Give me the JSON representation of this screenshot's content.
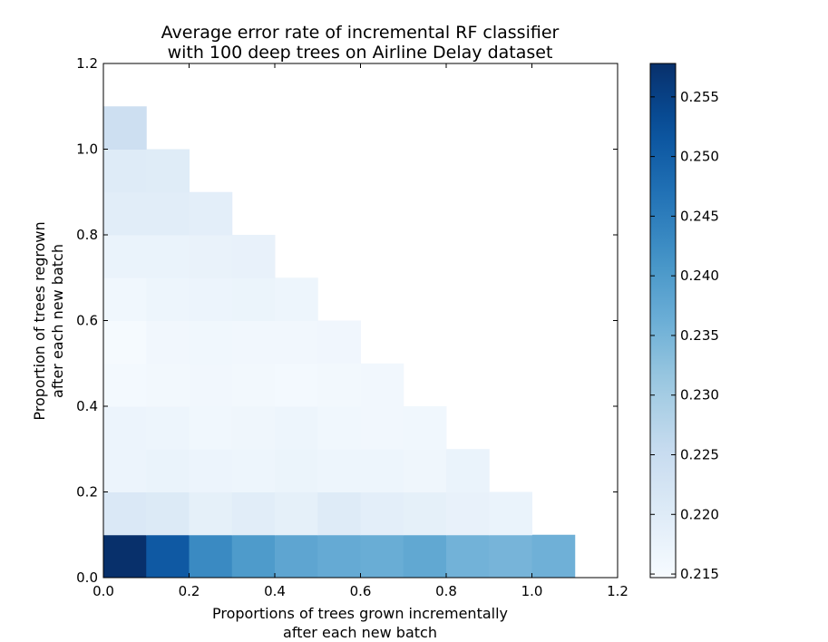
{
  "chart_data": {
    "type": "heatmap",
    "title": [
      "Average error rate of incremental RF classifier",
      "with 100 deep trees on Airline Delay dataset"
    ],
    "xlabel": [
      "Proportions of trees grown incrementally",
      "after each new batch"
    ],
    "ylabel": [
      "Proportion of trees regrown",
      "after each new batch"
    ],
    "xlim": [
      0.0,
      1.2
    ],
    "ylim": [
      0.0,
      1.2
    ],
    "xticks": [
      "0.0",
      "0.2",
      "0.4",
      "0.6",
      "0.8",
      "1.0",
      "1.2"
    ],
    "yticks": [
      "0.0",
      "0.2",
      "0.4",
      "0.6",
      "0.8",
      "1.0",
      "1.2"
    ],
    "cell_size": 0.1,
    "colormap": "Blues",
    "colorbar": {
      "min": 0.2147,
      "max": 0.2578,
      "ticks": [
        "0.215",
        "0.220",
        "0.225",
        "0.230",
        "0.235",
        "0.240",
        "0.245",
        "0.250",
        "0.255"
      ]
    },
    "rows_by_y": [
      {
        "y": 0.0,
        "values": [
          0.2578,
          0.251,
          0.243,
          0.24,
          0.238,
          0.237,
          0.2365,
          0.2375,
          0.2355,
          0.235,
          0.2358
        ]
      },
      {
        "y": 0.1,
        "values": [
          0.221,
          0.2205,
          0.2185,
          0.2195,
          0.2185,
          0.22,
          0.219,
          0.2185,
          0.218,
          0.2175
        ]
      },
      {
        "y": 0.2,
        "values": [
          0.217,
          0.2175,
          0.217,
          0.2168,
          0.2172,
          0.2168,
          0.2168,
          0.2165,
          0.2175
        ]
      },
      {
        "y": 0.3,
        "values": [
          0.217,
          0.2168,
          0.2162,
          0.2165,
          0.2168,
          0.2162,
          0.216,
          0.2162
        ]
      },
      {
        "y": 0.4,
        "values": [
          0.2155,
          0.2158,
          0.216,
          0.2158,
          0.2155,
          0.2158,
          0.216
        ]
      },
      {
        "y": 0.5,
        "values": [
          0.2152,
          0.216,
          0.2162,
          0.216,
          0.216,
          0.2163
        ]
      },
      {
        "y": 0.6,
        "values": [
          0.2162,
          0.2168,
          0.217,
          0.2172,
          0.2168
        ]
      },
      {
        "y": 0.7,
        "values": [
          0.2175,
          0.2175,
          0.2178,
          0.218
        ]
      },
      {
        "y": 0.8,
        "values": [
          0.2195,
          0.2195,
          0.219
        ]
      },
      {
        "y": 0.9,
        "values": [
          0.22,
          0.2198
        ]
      },
      {
        "y": 1.0,
        "values": [
          0.224
        ]
      }
    ]
  }
}
